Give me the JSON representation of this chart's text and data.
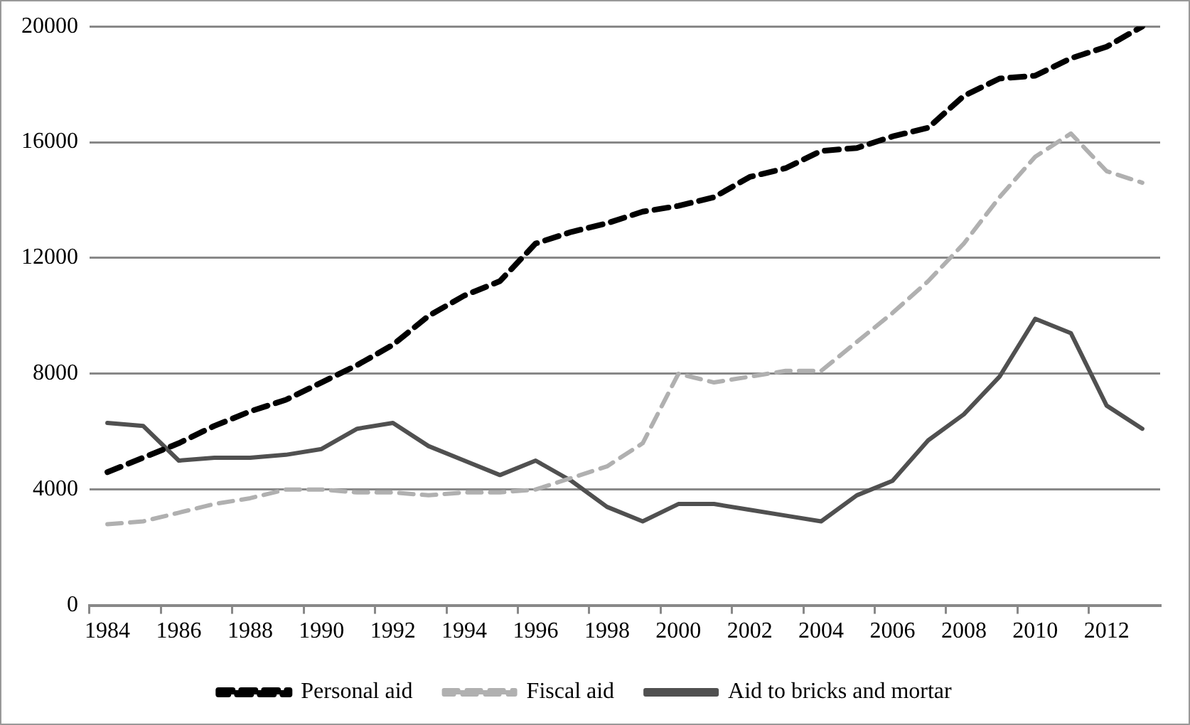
{
  "chart_data": {
    "type": "line",
    "categories": [
      "1984",
      null,
      "1986",
      null,
      "1988",
      null,
      "1990",
      null,
      "1992",
      null,
      "1994",
      null,
      "1996",
      null,
      "1998",
      null,
      "2000",
      null,
      "2002",
      null,
      "2004",
      null,
      "2006",
      null,
      "2008",
      null,
      "2010",
      null,
      "2012",
      null
    ],
    "series": [
      {
        "name": "Personal aid",
        "color": "#000000",
        "line_style": "dashed",
        "values": [
          4600,
          5100,
          5600,
          6200,
          6700,
          7100,
          7700,
          8300,
          9000,
          10000,
          10700,
          11200,
          12500,
          12900,
          13200,
          13600,
          13800,
          14100,
          14800,
          15100,
          15700,
          15800,
          16200,
          16500,
          17600,
          18200,
          18300,
          18900,
          19300,
          20000
        ]
      },
      {
        "name": "Fiscal aid",
        "color": "#b0b0b0",
        "line_style": "dashed",
        "values": [
          2800,
          2900,
          3200,
          3500,
          3700,
          4000,
          4000,
          3900,
          3900,
          3800,
          3900,
          3900,
          4000,
          4400,
          4800,
          5600,
          8000,
          7700,
          7900,
          8100,
          8100,
          9100,
          10100,
          11200,
          12500,
          14100,
          15500,
          16300,
          15000,
          14600
        ]
      },
      {
        "name": "Aid to bricks and mortar",
        "color": "#505050",
        "line_style": "solid",
        "values": [
          6300,
          6200,
          5000,
          5100,
          5100,
          5200,
          5400,
          6100,
          6300,
          5500,
          5000,
          4500,
          5000,
          4300,
          3400,
          2900,
          3500,
          3500,
          3300,
          3100,
          2900,
          3800,
          4300,
          5700,
          6600,
          7900,
          9900,
          9400,
          6900,
          6100
        ]
      }
    ],
    "ylim": [
      0,
      20000
    ],
    "yticks": [
      0,
      4000,
      8000,
      12000,
      16000,
      20000
    ],
    "grid": "y",
    "legend": "bottom",
    "marker": "none"
  }
}
